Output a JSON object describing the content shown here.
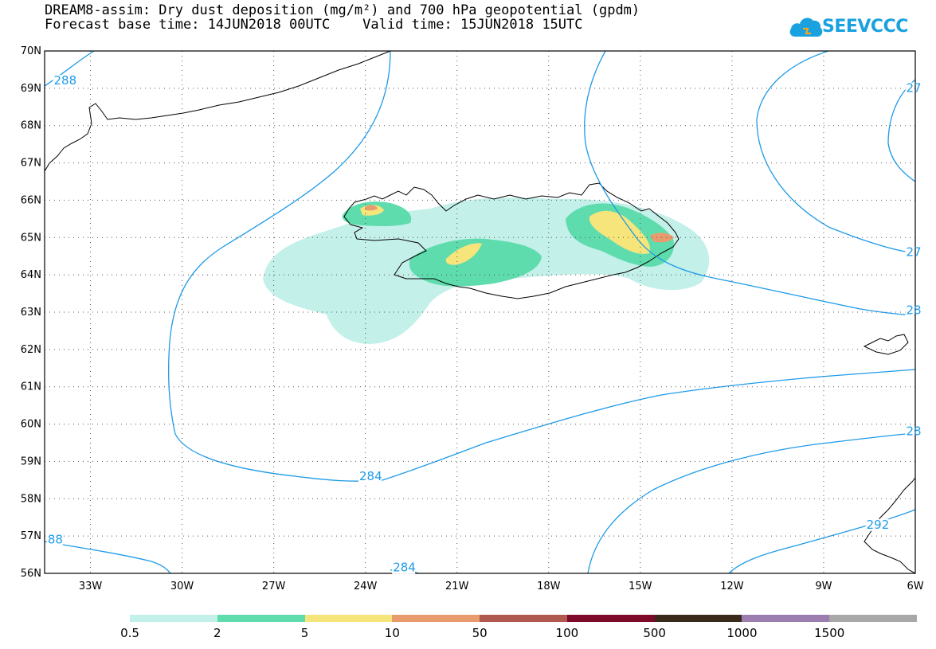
{
  "header": {
    "title_line1": "DREAM8-assim: Dry dust deposition (mg/m²) and 700 hPa geopotential (gpdm)",
    "title_line2": "Forecast base time: 14JUN2018 00UTC    Valid time: 15JUN2018 15UTC"
  },
  "logo": {
    "text": "SEEVCCC",
    "icon": "cloud-logo-icon",
    "color": "#1aa1e0"
  },
  "map": {
    "lat_range": [
      56,
      70
    ],
    "lon_range": [
      -34.5,
      -6
    ],
    "lat_labels": [
      "70N",
      "69N",
      "68N",
      "67N",
      "66N",
      "65N",
      "64N",
      "63N",
      "62N",
      "61N",
      "60N",
      "59N",
      "58N",
      "57N",
      "56N"
    ],
    "lon_labels": [
      "33W",
      "30W",
      "27W",
      "24W",
      "21W",
      "18W",
      "15W",
      "12W",
      "9W",
      "6W"
    ],
    "contour_color": "#1e9be8",
    "contour_labels": [
      {
        "text": "288",
        "lon": -34.2,
        "lat": 69.1
      },
      {
        "text": "284",
        "lon": -24.2,
        "lat": 58.5
      },
      {
        "text": "284",
        "lon": -23.1,
        "lat": 56.05
      },
      {
        "text": "88",
        "lon": -34.4,
        "lat": 56.8
      },
      {
        "text": "28",
        "lon": -6.3,
        "lat": 62.95
      },
      {
        "text": "28",
        "lon": -6.3,
        "lat": 59.7
      },
      {
        "text": "27",
        "lon": -6.3,
        "lat": 64.5
      },
      {
        "text": "27",
        "lon": -6.3,
        "lat": 68.9
      },
      {
        "text": "292",
        "lon": -7.6,
        "lat": 57.2
      }
    ]
  },
  "legend": {
    "colors": [
      "#c4f0ea",
      "#5fdcad",
      "#f5e57a",
      "#e89c6e",
      "#b05a4f",
      "#7d0a28",
      "#3a2a1a",
      "#9b7db0",
      "#a8a8a8"
    ],
    "labels": [
      "0.5",
      "2",
      "5",
      "10",
      "50",
      "100",
      "500",
      "1000",
      "1500"
    ]
  }
}
